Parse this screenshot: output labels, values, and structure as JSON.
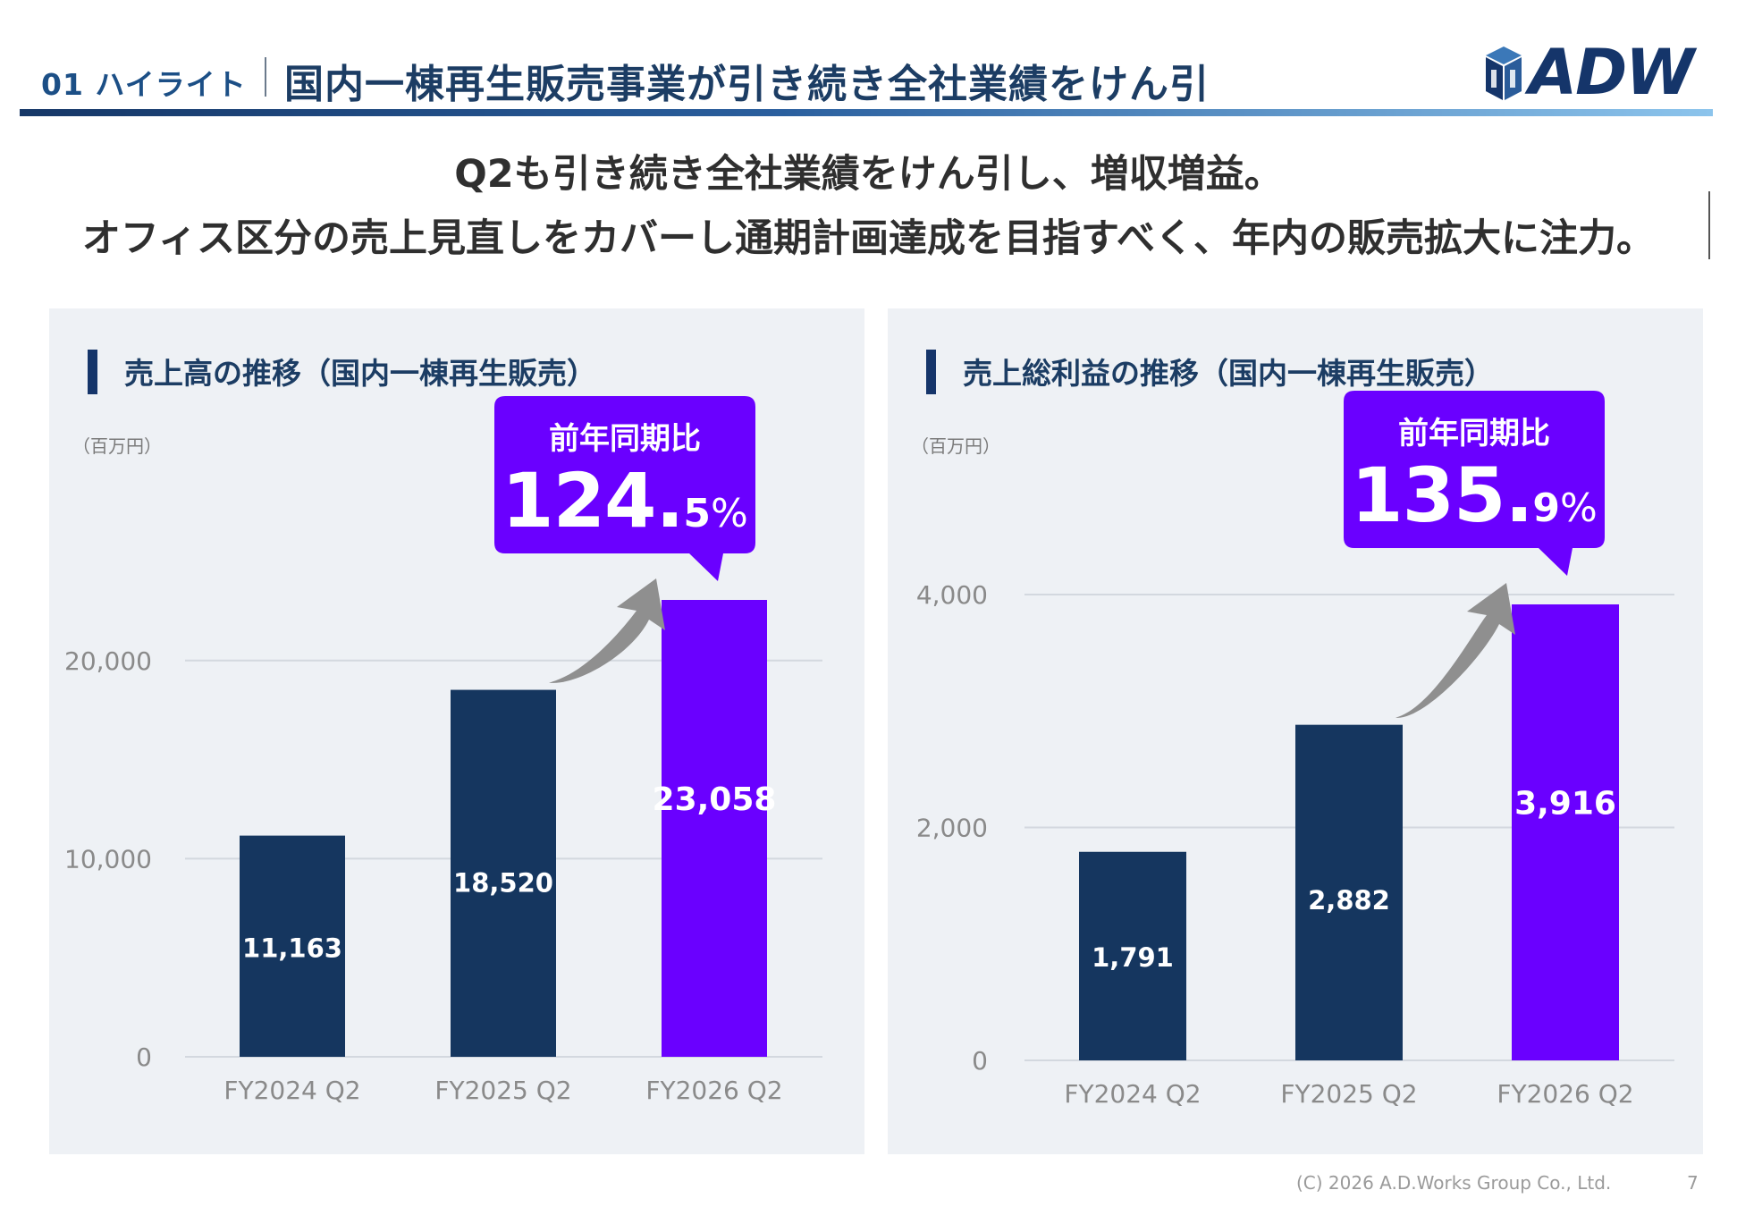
{
  "header": {
    "section_no": "01 ハイライト",
    "title": "国内一棟再生販売事業が引き続き全社業績をけん引",
    "logo_text": "ADW"
  },
  "headline": {
    "line1": "Q2も引き続き全社業績をけん引し、増収増益。",
    "line2": "オフィス区分の売上見直しをカバーし通期計画達成を目指すべく、年内の販売拡大に注力。"
  },
  "colors": {
    "navy": "#15365f",
    "purple": "#6a00ff",
    "panel_bg": "#eef1f5",
    "arrow_gray": "#8f8f8f"
  },
  "chart_data": [
    {
      "type": "bar",
      "title": "売上高の推移（国内一棟再生販売）",
      "unit": "（百万円）",
      "categories": [
        "FY2024 Q2",
        "FY2025 Q2",
        "FY2026 Q2"
      ],
      "values": [
        11163,
        18520,
        23058
      ],
      "value_labels": [
        "11,163",
        "18,520",
        "23,058"
      ],
      "yticks": [
        0,
        10000,
        20000
      ],
      "ytick_labels": [
        "0",
        "10,000",
        "20,000"
      ],
      "ylim": [
        0,
        23058
      ],
      "bar_colors": [
        "#15365f",
        "#15365f",
        "#6a00ff"
      ],
      "callout": {
        "label": "前年同期比",
        "int": "124.",
        "dec": "5",
        "pct": "%"
      }
    },
    {
      "type": "bar",
      "title": "売上総利益の推移（国内一棟再生販売）",
      "unit": "（百万円）",
      "categories": [
        "FY2024 Q2",
        "FY2025 Q2",
        "FY2026 Q2"
      ],
      "values": [
        1791,
        2882,
        3916
      ],
      "value_labels": [
        "1,791",
        "2,882",
        "3,916"
      ],
      "yticks": [
        0,
        2000,
        4000
      ],
      "ytick_labels": [
        "0",
        "2,000",
        "4,000"
      ],
      "ylim": [
        0,
        3916
      ],
      "bar_colors": [
        "#15365f",
        "#15365f",
        "#6a00ff"
      ],
      "callout": {
        "label": "前年同期比",
        "int": "135.",
        "dec": "9",
        "pct": "%"
      }
    }
  ],
  "footer": {
    "copyright": "(C) 2026  A.D.Works Group Co., Ltd.",
    "page": "7"
  }
}
